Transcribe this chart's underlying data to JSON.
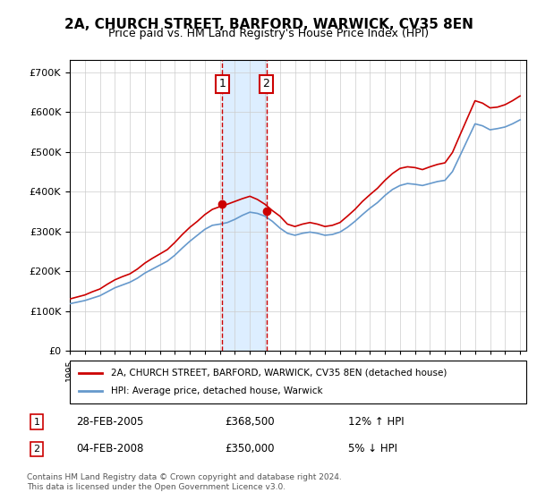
{
  "title": "2A, CHURCH STREET, BARFORD, WARWICK, CV35 8EN",
  "subtitle": "Price paid vs. HM Land Registry's House Price Index (HPI)",
  "ylabel_ticks": [
    "£0",
    "£100K",
    "£200K",
    "£300K",
    "£400K",
    "£500K",
    "£600K",
    "£700K"
  ],
  "ylim": [
    0,
    730000
  ],
  "ytick_values": [
    0,
    100000,
    200000,
    300000,
    400000,
    500000,
    600000,
    700000
  ],
  "sale1_date": "2005-02-28",
  "sale1_price": 368500,
  "sale1_label": "1",
  "sale2_date": "2008-02-04",
  "sale2_price": 350000,
  "sale2_label": "2",
  "legend_house": "2A, CHURCH STREET, BARFORD, WARWICK, CV35 8EN (detached house)",
  "legend_hpi": "HPI: Average price, detached house, Warwick",
  "table_row1": "28-FEB-2005    £368,500    12% ↑ HPI",
  "table_row2": "04-FEB-2008    £350,000    5% ↓ HPI",
  "footnote": "Contains HM Land Registry data © Crown copyright and database right 2024.\nThis data is licensed under the Open Government Licence v3.0.",
  "house_line_color": "#cc0000",
  "hpi_line_color": "#6699cc",
  "shade_color": "#ddeeff",
  "vline_color": "#cc0000",
  "background_color": "#ffffff",
  "grid_color": "#cccccc"
}
